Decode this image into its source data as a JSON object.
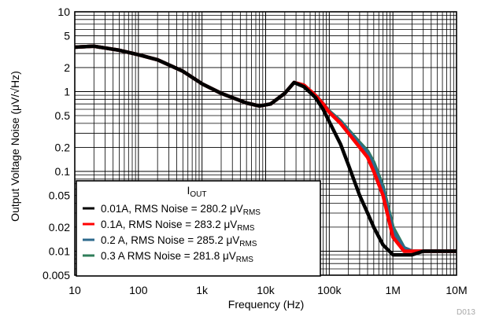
{
  "chart_data": {
    "type": "line",
    "xlabel": "Frequency (Hz)",
    "ylabel": "Output Voltage Noise (μV/√Hz)",
    "xscale": "log",
    "yscale": "log",
    "xlim": [
      10,
      10000000
    ],
    "ylim": [
      0.005,
      10
    ],
    "grid": true,
    "figure_id": "D013",
    "x_ticks": [
      {
        "value": 10,
        "label": "10"
      },
      {
        "value": 100,
        "label": "100"
      },
      {
        "value": 1000,
        "label": "1k"
      },
      {
        "value": 10000,
        "label": "10k"
      },
      {
        "value": 100000,
        "label": "100k"
      },
      {
        "value": 1000000,
        "label": "1M"
      },
      {
        "value": 10000000,
        "label": "10M"
      }
    ],
    "y_ticks": [
      {
        "value": 10,
        "label": "10"
      },
      {
        "value": 5,
        "label": "5"
      },
      {
        "value": 2,
        "label": "2"
      },
      {
        "value": 1,
        "label": "1"
      },
      {
        "value": 0.5,
        "label": "0.5"
      },
      {
        "value": 0.2,
        "label": "0.2"
      },
      {
        "value": 0.1,
        "label": "0.1"
      },
      {
        "value": 0.05,
        "label": "0.05"
      },
      {
        "value": 0.02,
        "label": "0.02"
      },
      {
        "value": 0.01,
        "label": "0.01"
      },
      {
        "value": 0.005,
        "label": "0.005"
      }
    ],
    "legend": {
      "title_main": "I",
      "title_sub": "OUT",
      "placement": "bottom-left"
    },
    "series": [
      {
        "name": "0.01A, RMS Noise = 280.2 μV",
        "name_sub": "RMS",
        "color": "#000000",
        "x": [
          10,
          20,
          50,
          100,
          200,
          500,
          1000,
          2000,
          5000,
          8000,
          12000,
          20000,
          28000,
          40000,
          60000,
          80000,
          100000,
          150000,
          200000,
          300000,
          400000,
          500000,
          700000,
          1000000,
          1500000,
          2000000,
          3000000,
          5000000,
          10000000
        ],
        "values": [
          3.6,
          3.7,
          3.3,
          2.9,
          2.5,
          1.8,
          1.25,
          0.95,
          0.72,
          0.66,
          0.7,
          0.95,
          1.3,
          1.15,
          0.85,
          0.6,
          0.42,
          0.22,
          0.12,
          0.05,
          0.03,
          0.02,
          0.012,
          0.009,
          0.009,
          0.009,
          0.01,
          0.01,
          0.01
        ]
      },
      {
        "name": "0.1A, RMS Noise = 283.2  μV",
        "name_sub": "RMS",
        "color": "#ff0000",
        "x": [
          10,
          20,
          50,
          100,
          200,
          500,
          1000,
          2000,
          5000,
          8000,
          12000,
          20000,
          28000,
          40000,
          60000,
          80000,
          100000,
          150000,
          200000,
          300000,
          400000,
          500000,
          700000,
          1000000,
          1500000,
          2000000,
          3000000,
          5000000,
          10000000
        ],
        "values": [
          3.6,
          3.7,
          3.3,
          2.9,
          2.5,
          1.8,
          1.25,
          0.95,
          0.72,
          0.66,
          0.7,
          0.95,
          1.3,
          1.2,
          0.9,
          0.7,
          0.55,
          0.4,
          0.3,
          0.2,
          0.15,
          0.1,
          0.05,
          0.015,
          0.01,
          0.01,
          0.01,
          0.01,
          0.01
        ]
      },
      {
        "name": "0.2 A, RMS Noise = 285.2  μV",
        "name_sub": "RMS",
        "color": "#2d6a8c",
        "x": [
          10,
          20,
          50,
          100,
          200,
          500,
          1000,
          2000,
          5000,
          8000,
          12000,
          20000,
          28000,
          40000,
          60000,
          80000,
          100000,
          150000,
          200000,
          300000,
          400000,
          500000,
          700000,
          1000000,
          1500000,
          2000000,
          3000000,
          5000000,
          10000000
        ],
        "values": [
          3.6,
          3.7,
          3.3,
          2.9,
          2.5,
          1.8,
          1.25,
          0.95,
          0.72,
          0.66,
          0.7,
          0.95,
          1.3,
          1.2,
          0.9,
          0.7,
          0.56,
          0.42,
          0.32,
          0.22,
          0.17,
          0.12,
          0.06,
          0.018,
          0.011,
          0.01,
          0.01,
          0.01,
          0.01
        ]
      },
      {
        "name": "0.3 A RMS Noise = 281.8  μV",
        "name_sub": "RMS",
        "color": "#2f7d5a",
        "x": [
          10,
          20,
          50,
          100,
          200,
          500,
          1000,
          2000,
          5000,
          8000,
          12000,
          20000,
          28000,
          40000,
          60000,
          80000,
          100000,
          150000,
          200000,
          300000,
          400000,
          500000,
          700000,
          1000000,
          1500000,
          2000000,
          3000000,
          5000000,
          10000000
        ],
        "values": [
          3.6,
          3.7,
          3.3,
          2.9,
          2.5,
          1.8,
          1.25,
          0.95,
          0.72,
          0.66,
          0.7,
          0.95,
          1.3,
          1.2,
          0.9,
          0.7,
          0.57,
          0.43,
          0.33,
          0.23,
          0.18,
          0.13,
          0.065,
          0.02,
          0.011,
          0.01,
          0.01,
          0.01,
          0.01
        ]
      }
    ]
  }
}
